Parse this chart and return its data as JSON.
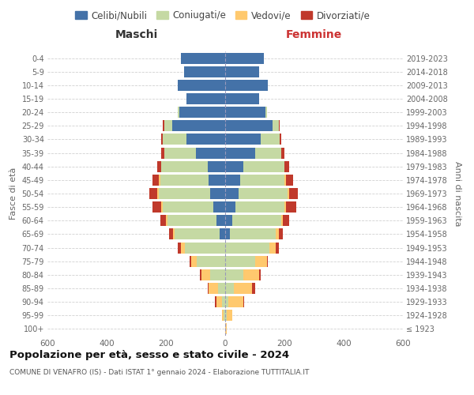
{
  "age_groups": [
    "100+",
    "95-99",
    "90-94",
    "85-89",
    "80-84",
    "75-79",
    "70-74",
    "65-69",
    "60-64",
    "55-59",
    "50-54",
    "45-49",
    "40-44",
    "35-39",
    "30-34",
    "25-29",
    "20-24",
    "15-19",
    "10-14",
    "5-9",
    "0-4"
  ],
  "birth_years": [
    "≤ 1923",
    "1924-1928",
    "1929-1933",
    "1934-1938",
    "1939-1943",
    "1944-1948",
    "1949-1953",
    "1954-1958",
    "1959-1963",
    "1964-1968",
    "1969-1973",
    "1974-1978",
    "1979-1983",
    "1984-1988",
    "1989-1993",
    "1994-1998",
    "1999-2003",
    "2004-2008",
    "2009-2013",
    "2014-2018",
    "2019-2023"
  ],
  "males": {
    "celibe": [
      0,
      0,
      0,
      0,
      0,
      0,
      0,
      20,
      30,
      40,
      50,
      55,
      60,
      100,
      130,
      180,
      155,
      130,
      160,
      140,
      150
    ],
    "coniugato": [
      0,
      5,
      10,
      25,
      50,
      95,
      135,
      150,
      165,
      170,
      175,
      165,
      155,
      105,
      80,
      25,
      5,
      0,
      0,
      0,
      0
    ],
    "vedovo": [
      0,
      5,
      20,
      30,
      30,
      20,
      15,
      5,
      5,
      5,
      5,
      5,
      0,
      0,
      0,
      0,
      0,
      0,
      0,
      0,
      0
    ],
    "divorziato": [
      0,
      0,
      5,
      5,
      5,
      5,
      10,
      15,
      20,
      30,
      25,
      20,
      15,
      10,
      5,
      5,
      0,
      0,
      0,
      0,
      0
    ]
  },
  "females": {
    "nubile": [
      0,
      0,
      0,
      0,
      0,
      0,
      0,
      15,
      25,
      35,
      45,
      50,
      60,
      100,
      120,
      160,
      135,
      115,
      145,
      115,
      130
    ],
    "coniugata": [
      0,
      5,
      10,
      30,
      60,
      100,
      150,
      155,
      165,
      165,
      165,
      150,
      140,
      90,
      65,
      20,
      5,
      0,
      0,
      0,
      0
    ],
    "vedova": [
      5,
      20,
      50,
      60,
      55,
      40,
      20,
      10,
      5,
      5,
      5,
      5,
      0,
      0,
      0,
      0,
      0,
      0,
      0,
      0,
      0
    ],
    "divorziata": [
      0,
      0,
      5,
      10,
      5,
      5,
      10,
      15,
      20,
      35,
      30,
      25,
      15,
      10,
      5,
      5,
      0,
      0,
      0,
      0,
      0
    ]
  },
  "colors": {
    "celibe": "#4472a8",
    "coniugato": "#c5d9a3",
    "vedovo": "#ffc96e",
    "divorziato": "#c0392b"
  },
  "xlim": 600,
  "title": "Popolazione per età, sesso e stato civile - 2024",
  "subtitle": "COMUNE DI VENAFRO (IS) - Dati ISTAT 1° gennaio 2024 - Elaborazione TUTTITALIA.IT",
  "xlabel_left": "Maschi",
  "xlabel_right": "Femmine",
  "ylabel_left": "Fasce di età",
  "ylabel_right": "Anni di nascita",
  "legend_labels": [
    "Celibi/Nubili",
    "Coniugati/e",
    "Vedovi/e",
    "Divorziati/e"
  ]
}
